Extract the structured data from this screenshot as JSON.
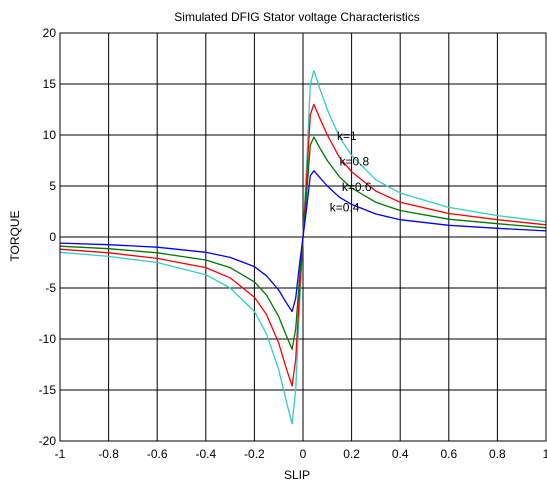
{
  "chart_data": {
    "type": "line",
    "title": "Simulated DFIG Stator voltage Characteristics",
    "xlabel": "SLIP",
    "ylabel": "TORQUE",
    "xlim": [
      -1,
      1
    ],
    "ylim": [
      -20,
      20
    ],
    "grid": true,
    "x_ticks": [
      -1,
      -0.8,
      -0.6,
      -0.4,
      -0.2,
      0,
      0.2,
      0.4,
      0.6,
      0.8,
      1
    ],
    "y_ticks": [
      20,
      15,
      10,
      5,
      0,
      -5,
      -10,
      -15,
      -20
    ],
    "x_tick_labels": [
      "-1",
      "-0.8",
      "-0.6",
      "-0.4",
      "-0.2",
      "0",
      "0.2",
      "0.4",
      "0.6",
      "0.8",
      "1"
    ],
    "y_tick_labels": [
      "20",
      "15",
      "10",
      "5",
      "0",
      "-5",
      "-10",
      "-15",
      "-20"
    ],
    "series": [
      {
        "name": "k=1",
        "color": "#33cccc",
        "points": [
          [
            -1,
            -1.5
          ],
          [
            -0.8,
            -1.9
          ],
          [
            -0.6,
            -2.5
          ],
          [
            -0.4,
            -3.7
          ],
          [
            -0.3,
            -5.0
          ],
          [
            -0.2,
            -7.3
          ],
          [
            -0.15,
            -9.5
          ],
          [
            -0.1,
            -13.0
          ],
          [
            -0.07,
            -16.0
          ],
          [
            -0.045,
            -18.3
          ],
          [
            -0.03,
            -15.0
          ],
          [
            -0.015,
            -7.0
          ],
          [
            0,
            0
          ],
          [
            0.015,
            7.0
          ],
          [
            0.03,
            15.0
          ],
          [
            0.045,
            16.3
          ],
          [
            0.07,
            14.5
          ],
          [
            0.1,
            12.5
          ],
          [
            0.15,
            9.8
          ],
          [
            0.2,
            8.0
          ],
          [
            0.3,
            5.6
          ],
          [
            0.4,
            4.3
          ],
          [
            0.6,
            2.9
          ],
          [
            0.8,
            2.1
          ],
          [
            1,
            1.5
          ]
        ]
      },
      {
        "name": "k=0.8",
        "color": "#ff0000",
        "points": [
          [
            -1,
            -1.2
          ],
          [
            -0.8,
            -1.55
          ],
          [
            -0.6,
            -2.1
          ],
          [
            -0.4,
            -3.0
          ],
          [
            -0.3,
            -4.0
          ],
          [
            -0.2,
            -5.9
          ],
          [
            -0.15,
            -7.6
          ],
          [
            -0.1,
            -10.4
          ],
          [
            -0.07,
            -12.8
          ],
          [
            -0.045,
            -14.6
          ],
          [
            -0.03,
            -12.0
          ],
          [
            -0.015,
            -5.6
          ],
          [
            0,
            0
          ],
          [
            0.015,
            5.6
          ],
          [
            0.03,
            12.0
          ],
          [
            0.045,
            13.0
          ],
          [
            0.07,
            11.6
          ],
          [
            0.1,
            10.0
          ],
          [
            0.15,
            7.8
          ],
          [
            0.2,
            6.4
          ],
          [
            0.3,
            4.5
          ],
          [
            0.4,
            3.4
          ],
          [
            0.6,
            2.3
          ],
          [
            0.8,
            1.7
          ],
          [
            1,
            1.2
          ]
        ]
      },
      {
        "name": "k=0.6",
        "color": "#007700",
        "points": [
          [
            -1,
            -0.9
          ],
          [
            -0.8,
            -1.15
          ],
          [
            -0.6,
            -1.55
          ],
          [
            -0.4,
            -2.25
          ],
          [
            -0.3,
            -3.0
          ],
          [
            -0.2,
            -4.4
          ],
          [
            -0.15,
            -5.7
          ],
          [
            -0.1,
            -7.8
          ],
          [
            -0.07,
            -9.6
          ],
          [
            -0.045,
            -11.0
          ],
          [
            -0.03,
            -9.0
          ],
          [
            -0.015,
            -4.2
          ],
          [
            0,
            0
          ],
          [
            0.015,
            4.2
          ],
          [
            0.03,
            9.0
          ],
          [
            0.045,
            9.8
          ],
          [
            0.07,
            8.7
          ],
          [
            0.1,
            7.5
          ],
          [
            0.15,
            5.9
          ],
          [
            0.2,
            4.8
          ],
          [
            0.3,
            3.4
          ],
          [
            0.4,
            2.6
          ],
          [
            0.6,
            1.75
          ],
          [
            0.8,
            1.3
          ],
          [
            1,
            0.9
          ]
        ]
      },
      {
        "name": "k=0.4",
        "color": "#0000ff",
        "points": [
          [
            -1,
            -0.6
          ],
          [
            -0.8,
            -0.75
          ],
          [
            -0.6,
            -1.0
          ],
          [
            -0.4,
            -1.5
          ],
          [
            -0.3,
            -2.0
          ],
          [
            -0.2,
            -2.9
          ],
          [
            -0.15,
            -3.8
          ],
          [
            -0.1,
            -5.2
          ],
          [
            -0.07,
            -6.4
          ],
          [
            -0.045,
            -7.3
          ],
          [
            -0.03,
            -6.0
          ],
          [
            -0.015,
            -2.8
          ],
          [
            0,
            0
          ],
          [
            0.015,
            2.8
          ],
          [
            0.03,
            6.0
          ],
          [
            0.045,
            6.5
          ],
          [
            0.07,
            5.8
          ],
          [
            0.1,
            5.0
          ],
          [
            0.15,
            3.9
          ],
          [
            0.2,
            3.2
          ],
          [
            0.3,
            2.25
          ],
          [
            0.4,
            1.7
          ],
          [
            0.6,
            1.15
          ],
          [
            0.8,
            0.85
          ],
          [
            1,
            0.6
          ]
        ]
      }
    ],
    "annotations": [
      {
        "text": "k=1",
        "x": 0.14,
        "y": 9.5
      },
      {
        "text": "k=0.8",
        "x": 0.15,
        "y": 7.0
      },
      {
        "text": "k=0.6",
        "x": 0.16,
        "y": 4.5
      },
      {
        "text": "k=0.4",
        "x": 0.11,
        "y": 2.5
      }
    ]
  }
}
